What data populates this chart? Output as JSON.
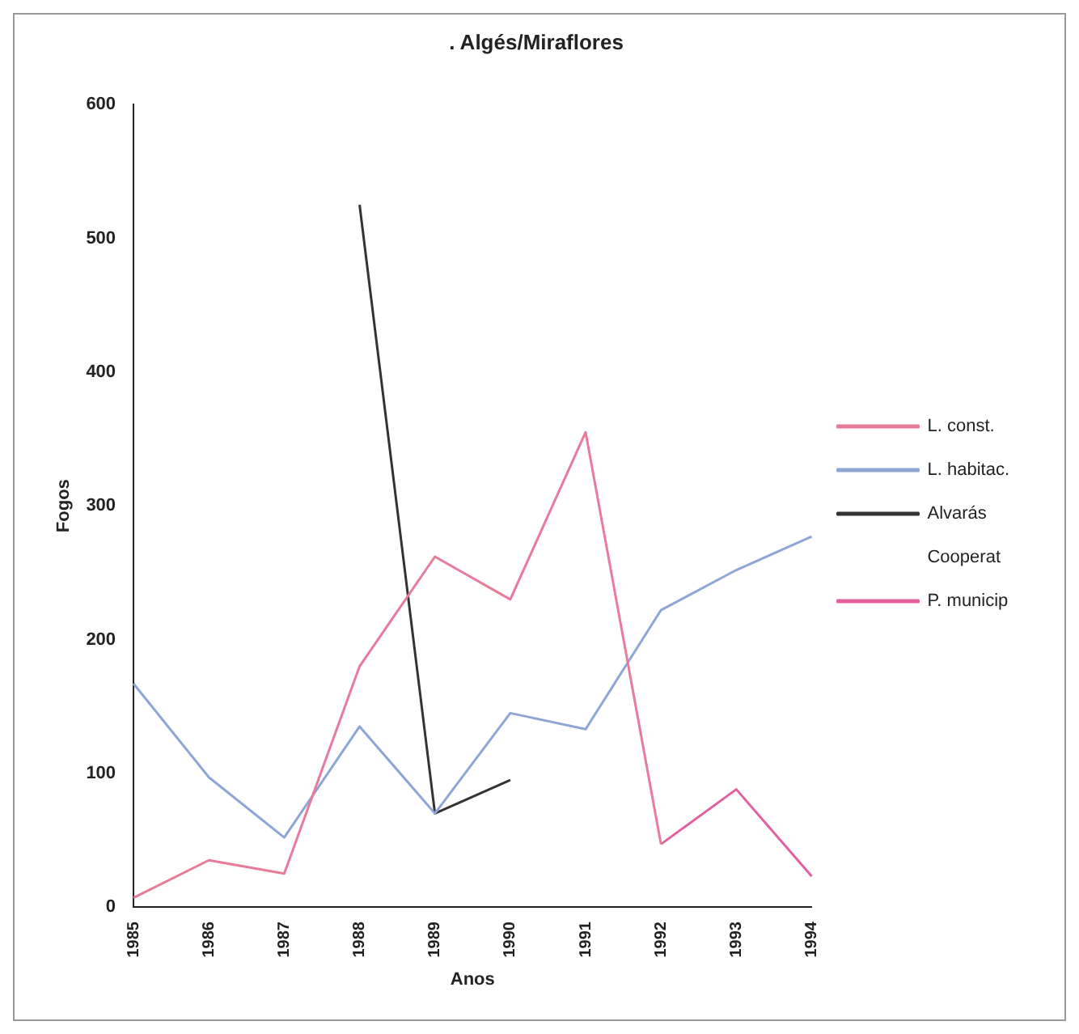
{
  "chart_data": {
    "type": "line",
    "title": ". Algés/Miraflores",
    "xlabel": "Anos",
    "ylabel": "Fogos",
    "categories": [
      "1985",
      "1986",
      "1987",
      "1988",
      "1989",
      "1990",
      "1991",
      "1992",
      "1993",
      "1994"
    ],
    "series": [
      {
        "name": "L. const.",
        "color": "#e87a9a",
        "values": [
          7,
          35,
          25,
          180,
          262,
          230,
          355,
          47,
          null,
          null
        ]
      },
      {
        "name": "L. habitac.",
        "color": "#8ea6d6",
        "values": [
          167,
          97,
          52,
          135,
          70,
          145,
          133,
          222,
          252,
          277
        ]
      },
      {
        "name": "Alvarás",
        "color": "#333333",
        "values": [
          null,
          null,
          null,
          525,
          70,
          95,
          null,
          null,
          null,
          null
        ]
      },
      {
        "name": "Cooperat",
        "values": [
          null,
          null,
          null,
          null,
          null,
          null,
          null,
          null,
          null,
          null
        ]
      },
      {
        "name": "P. municip",
        "color": "#e060a0",
        "values": [
          null,
          null,
          null,
          null,
          null,
          null,
          null,
          47,
          88,
          23
        ]
      }
    ],
    "ylim": [
      0,
      600
    ],
    "yticks": [
      0,
      100,
      200,
      300,
      400,
      500,
      600
    ],
    "grid": false,
    "legend": "right",
    "marker": "none",
    "line_style": "solid"
  }
}
